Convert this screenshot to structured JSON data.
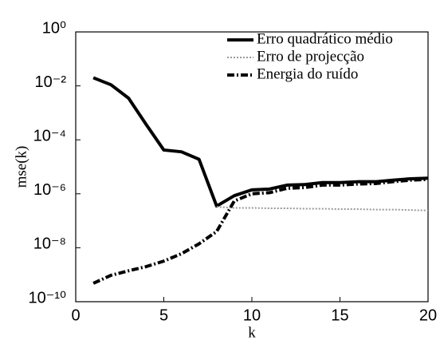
{
  "chart_data": {
    "type": "line",
    "x": [
      1,
      2,
      3,
      4,
      5,
      6,
      7,
      8,
      9,
      10,
      11,
      12,
      13,
      14,
      15,
      16,
      17,
      18,
      19,
      20
    ],
    "xlabel": "k",
    "ylabel": "mse(k)",
    "xlim": [
      0,
      20
    ],
    "xticks": [
      0,
      5,
      10,
      15,
      20
    ],
    "ylim": [
      1e-10,
      1
    ],
    "ylog": true,
    "yticks": [
      {
        "value": 1,
        "label": "10⁰"
      },
      {
        "value": 0.01,
        "label": "10⁻²"
      },
      {
        "value": 0.0001,
        "label": "10⁻⁴"
      },
      {
        "value": 1e-06,
        "label": "10⁻⁶"
      },
      {
        "value": 1e-08,
        "label": "10⁻⁸"
      },
      {
        "value": 1e-10,
        "label": "10⁻¹⁰"
      }
    ],
    "legend": "upper right",
    "grid": false,
    "series": [
      {
        "name": "Erro quadrático médio",
        "color": "#000000",
        "linestyle": "solid",
        "values": [
          0.02,
          0.011,
          0.0035,
          0.00037,
          4.2e-05,
          3.6e-05,
          1.9e-05,
          3.5e-07,
          8.5e-07,
          1.4e-06,
          1.5e-06,
          2.1e-06,
          2.2e-06,
          2.6e-06,
          2.6e-06,
          2.8e-06,
          2.8e-06,
          3.2e-06,
          3.6e-06,
          3.8e-06
        ]
      },
      {
        "name": "Erro de projecção",
        "color": "#999999",
        "linestyle": "dotted",
        "values": [
          null,
          null,
          null,
          null,
          null,
          null,
          null,
          3.3e-07,
          3e-07,
          3e-07,
          2.9e-07,
          2.9e-07,
          2.8e-07,
          2.8e-07,
          2.7e-07,
          2.7e-07,
          2.6e-07,
          2.6e-07,
          2.5e-07,
          2.4e-07
        ]
      },
      {
        "name": "Energia do ruído",
        "color": "#000000",
        "linestyle": "dashdot",
        "values": [
          4.8e-10,
          9.5e-10,
          1.4e-09,
          2e-09,
          3.2e-09,
          6e-09,
          1.4e-08,
          4e-08,
          5.4e-07,
          1e-06,
          1.1e-06,
          1.6e-06,
          1.7e-06,
          2.1e-06,
          2.1e-06,
          2.3e-06,
          2.4e-06,
          2.8e-06,
          3.2e-06,
          3.4e-06
        ]
      }
    ]
  }
}
